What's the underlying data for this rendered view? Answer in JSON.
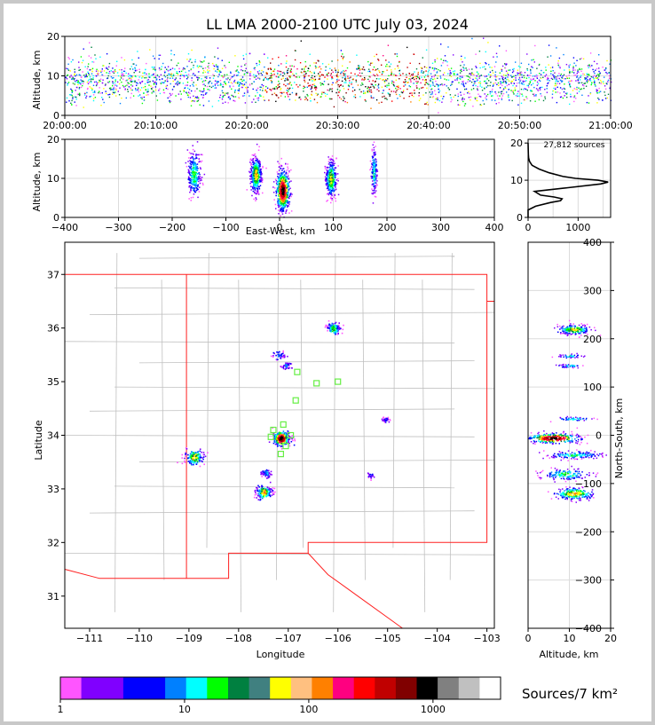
{
  "chart_data": [
    {
      "panel": "altitude-vs-time",
      "type": "scatter",
      "title": "LL LMA 2000-2100 UTC July 03, 2024",
      "ylabel": "Altitude, km",
      "xlim_minutes": [
        0,
        60
      ],
      "ylim": [
        0,
        20
      ],
      "x_tick_labels": [
        "20:00:00",
        "20:10:00",
        "20:20:00",
        "20:30:00",
        "20:40:00",
        "20:50:00",
        "21:00:00"
      ],
      "y_ticks": [
        0,
        10,
        20
      ],
      "grid": true
    },
    {
      "panel": "altitude-vs-east-west",
      "type": "scatter",
      "xlabel": "East-West, km",
      "ylabel": "Altitude, km",
      "xlim": [
        -400,
        400
      ],
      "ylim": [
        0,
        20
      ],
      "x_ticks": [
        -400,
        -300,
        -200,
        -100,
        0,
        100,
        200,
        300,
        400
      ],
      "y_ticks": [
        0,
        10,
        20
      ],
      "clusters_x_km": [
        -160,
        -45,
        5,
        95,
        175
      ],
      "grid": true
    },
    {
      "panel": "altitude-histogram",
      "type": "line",
      "annotation": "27,812 sources",
      "xlim": [
        0,
        1650
      ],
      "ylim": [
        0,
        21
      ],
      "x_ticks": [
        0,
        1000
      ],
      "y_ticks": [
        0,
        10,
        20
      ],
      "profile": {
        "altitude_km": [
          0,
          2,
          3,
          4,
          4.5,
          5,
          5.5,
          6,
          7,
          8,
          9,
          9.5,
          10,
          10.5,
          11,
          12,
          13,
          14,
          15,
          16,
          17,
          18,
          19,
          20
        ],
        "count": [
          0,
          0,
          150,
          450,
          650,
          680,
          520,
          250,
          130,
          800,
          1450,
          1600,
          1400,
          950,
          700,
          420,
          220,
          80,
          30,
          10,
          5,
          3,
          1,
          0
        ]
      },
      "grid": true
    },
    {
      "panel": "plan-view-map",
      "type": "scatter",
      "xlabel": "Longitude",
      "ylabel": "Latitude",
      "xlim": [
        -111.5,
        -102.85
      ],
      "ylim": [
        30.4,
        37.6
      ],
      "x_tick_labels": [
        "−111",
        "−110",
        "−109",
        "−108",
        "−107",
        "−106",
        "−105",
        "−104",
        "−103"
      ],
      "y_ticks": [
        31,
        32,
        33,
        34,
        35,
        36,
        37
      ],
      "station_color": "#66ee44",
      "stations": [
        [
          -106.82,
          35.18
        ],
        [
          -106.43,
          34.97
        ],
        [
          -106.0,
          35.0
        ],
        [
          -106.85,
          34.65
        ],
        [
          -107.1,
          34.2
        ],
        [
          -107.3,
          34.1
        ],
        [
          -107.35,
          33.97
        ],
        [
          -106.95,
          34.0
        ],
        [
          -107.05,
          33.8
        ],
        [
          -107.15,
          33.65
        ]
      ],
      "source_clusters": [
        [
          -106.1,
          36.0
        ],
        [
          -107.05,
          35.3
        ],
        [
          -107.2,
          35.5
        ],
        [
          -108.9,
          33.6
        ],
        [
          -107.15,
          33.95
        ],
        [
          -107.45,
          33.3
        ],
        [
          -107.5,
          32.95
        ],
        [
          -105.05,
          34.3
        ],
        [
          -105.35,
          33.25
        ]
      ],
      "state_border_color": "#ff2020",
      "county_border_color": "#c0c0c0"
    },
    {
      "panel": "north-south-vs-altitude",
      "type": "scatter",
      "xlabel": "Altitude, km",
      "ylabel": "North-South, km",
      "xlim": [
        0,
        20
      ],
      "ylim": [
        -400,
        400
      ],
      "x_ticks": [
        0,
        10,
        20
      ],
      "y_ticks": [
        -400,
        -300,
        -200,
        -100,
        0,
        100,
        200,
        300,
        400
      ],
      "clusters_ns_km": [
        220,
        165,
        145,
        35,
        -5,
        -40,
        -80,
        -120
      ],
      "grid": true
    },
    {
      "panel": "colorbar",
      "type": "heatmap",
      "label": "Sources/7 km²",
      "scale": "log",
      "tick_labels": [
        "1",
        "10",
        "100",
        "1000"
      ],
      "tick_values": [
        1,
        10,
        100,
        1000
      ],
      "range": [
        1,
        3500
      ],
      "colors": [
        "#ff55ff",
        "#8000ff",
        "#8000ff",
        "#0000ff",
        "#0000ff",
        "#0080ff",
        "#00ffff",
        "#00ff00",
        "#008040",
        "#408080",
        "#ffff00",
        "#ffc080",
        "#ff8000",
        "#ff0080",
        "#ff0000",
        "#c00000",
        "#800000",
        "#000000",
        "#808080",
        "#c0c0c0",
        "#ffffff"
      ]
    }
  ]
}
